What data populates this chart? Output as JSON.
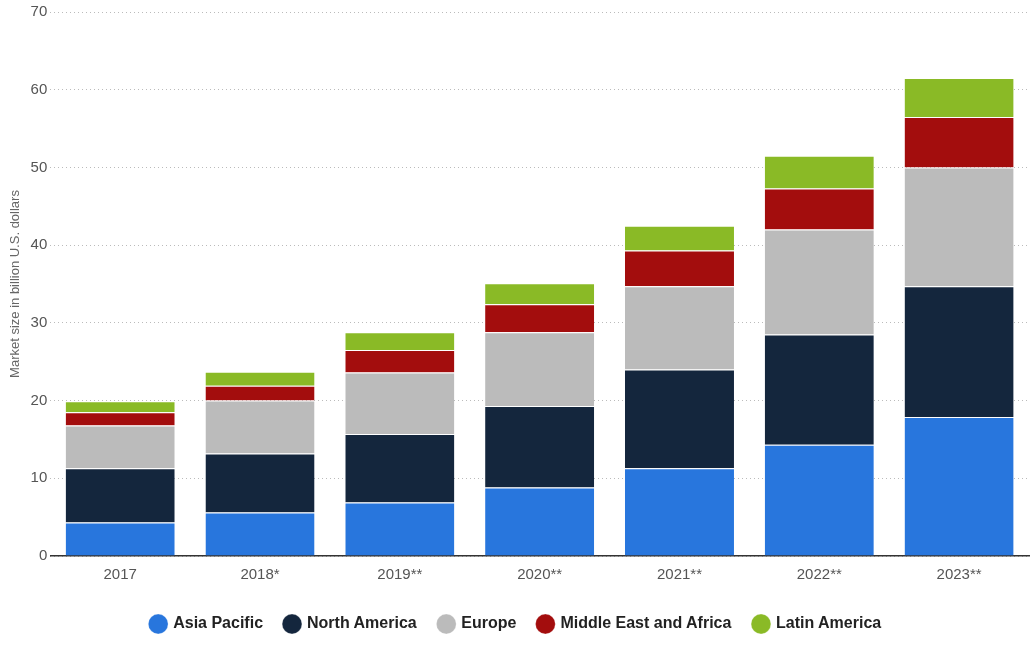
{
  "chart_data": {
    "type": "bar",
    "stacked": true,
    "ylabel": "Market size in billion U.S. dollars",
    "categories": [
      "2017",
      "2018*",
      "2019**",
      "2020**",
      "2021**",
      "2022**",
      "2023**"
    ],
    "series": [
      {
        "name": "Asia Pacific",
        "color": "#2876dd",
        "values": [
          4.3,
          5.6,
          6.9,
          8.8,
          11.3,
          14.3,
          17.9
        ]
      },
      {
        "name": "North America",
        "color": "#14263d",
        "values": [
          7.0,
          7.6,
          8.8,
          10.5,
          12.7,
          14.2,
          16.8
        ]
      },
      {
        "name": "Europe",
        "color": "#bbbbbb",
        "values": [
          5.5,
          6.8,
          7.9,
          9.5,
          10.7,
          13.5,
          15.3
        ]
      },
      {
        "name": "Middle East and Africa",
        "color": "#a30d0d",
        "values": [
          1.7,
          1.9,
          2.9,
          3.6,
          4.6,
          5.3,
          6.5
        ]
      },
      {
        "name": "Latin America",
        "color": "#8aba26",
        "values": [
          1.4,
          1.8,
          2.3,
          2.7,
          3.2,
          4.2,
          5.0
        ]
      }
    ],
    "ylim": [
      0,
      70
    ],
    "yticks": [
      0,
      10,
      20,
      30,
      40,
      50,
      60,
      70
    ],
    "grid": "y",
    "legend": "bottom"
  }
}
